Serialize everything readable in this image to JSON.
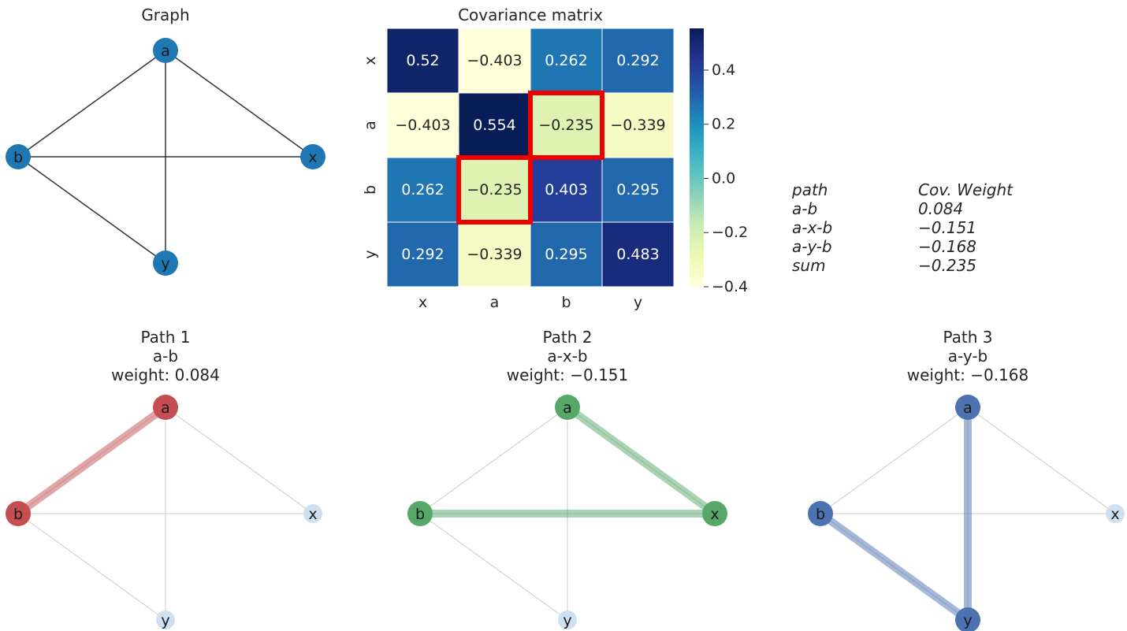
{
  "graph": {
    "title": "Graph",
    "nodes": [
      "a",
      "b",
      "x",
      "y"
    ],
    "edges": [
      [
        "a",
        "b"
      ],
      [
        "a",
        "x"
      ],
      [
        "a",
        "y"
      ],
      [
        "b",
        "x"
      ],
      [
        "b",
        "y"
      ]
    ]
  },
  "chart_data": {
    "type": "heatmap",
    "title": "Covariance matrix",
    "row_labels": [
      "x",
      "a",
      "b",
      "y"
    ],
    "col_labels": [
      "x",
      "a",
      "b",
      "y"
    ],
    "values": [
      [
        0.52,
        -0.403,
        0.262,
        0.292
      ],
      [
        -0.403,
        0.554,
        -0.235,
        -0.339
      ],
      [
        0.262,
        -0.235,
        0.403,
        0.295
      ],
      [
        0.292,
        -0.339,
        0.295,
        0.483
      ]
    ],
    "display": [
      [
        "0.52",
        "−0.403",
        "0.262",
        "0.292"
      ],
      [
        "−0.403",
        "0.554",
        "−0.235",
        "−0.339"
      ],
      [
        "0.262",
        "−0.235",
        "0.403",
        "0.295"
      ],
      [
        "0.292",
        "−0.339",
        "0.295",
        "0.483"
      ]
    ],
    "highlighted_cells": [
      [
        1,
        2
      ],
      [
        2,
        1
      ]
    ],
    "highlight_color": "#ee0000",
    "colormap": "YlGnBu",
    "vmin": -0.4,
    "vmax": 0.554,
    "colorbar_ticks": [
      0.4,
      0.2,
      0.0,
      -0.2,
      -0.4
    ],
    "colorbar_tick_labels": [
      "0.4",
      "0.2",
      "0.0",
      "−0.2",
      "−0.4"
    ]
  },
  "path_table": {
    "header": [
      "path",
      "Cov. Weight"
    ],
    "rows": [
      [
        "a-b",
        "0.084"
      ],
      [
        "a-x-b",
        "−0.151"
      ],
      [
        "a-y-b",
        "−0.168"
      ],
      [
        "sum",
        "−0.235"
      ]
    ]
  },
  "paths": [
    {
      "title": "Path 1",
      "path": "a-b",
      "weight": "weight: 0.084",
      "edges": [
        [
          "a",
          "b"
        ]
      ],
      "nodes": [
        "a",
        "b"
      ],
      "color": "#c44e52"
    },
    {
      "title": "Path 2",
      "path": "a-x-b",
      "weight": "weight: −0.151",
      "edges": [
        [
          "a",
          "x"
        ],
        [
          "x",
          "b"
        ]
      ],
      "nodes": [
        "a",
        "x",
        "b"
      ],
      "color": "#55a868"
    },
    {
      "title": "Path 3",
      "path": "a-y-b",
      "weight": "weight: −0.168",
      "edges": [
        [
          "a",
          "y"
        ],
        [
          "y",
          "b"
        ]
      ],
      "nodes": [
        "a",
        "y",
        "b"
      ],
      "color": "#4c72b0"
    }
  ],
  "colors": {
    "node_default": "#1f77b4",
    "node_faded": "#cfe0f0",
    "edge_default": "#333333",
    "edge_faded": "#cccccc"
  }
}
